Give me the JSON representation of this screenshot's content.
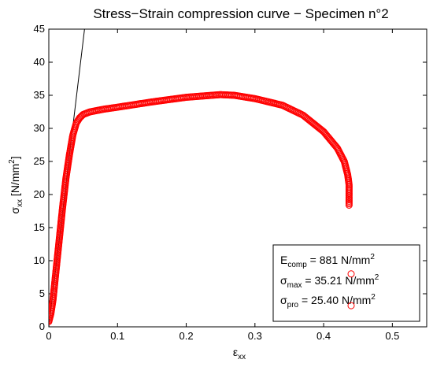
{
  "chart_data": {
    "type": "scatter",
    "title": "Stress−Strain compression curve − Specimen n°2",
    "xlabel": {
      "main": "ε",
      "sub": "xx"
    },
    "ylabel": {
      "main": "σ",
      "sub": "xx",
      "rest": " [N/mm",
      "sup": "2",
      "end": "]"
    },
    "xlim": [
      0,
      0.55
    ],
    "ylim": [
      0,
      45
    ],
    "xticks": [
      0,
      0.1,
      0.2,
      0.3,
      0.4,
      0.5
    ],
    "xtick_labels": [
      "0",
      "0.1",
      "0.2",
      "0.3",
      "0.4",
      "0.5"
    ],
    "yticks": [
      0,
      5,
      10,
      15,
      20,
      25,
      30,
      35,
      40,
      45
    ],
    "ytick_labels": [
      "0",
      "5",
      "10",
      "15",
      "20",
      "25",
      "30",
      "35",
      "40",
      "45"
    ],
    "grid": false,
    "marker_color": "#ff0000",
    "line_color": "#000000",
    "elastic_line": {
      "points": [
        [
          0,
          0
        ],
        [
          0.052,
          45
        ]
      ]
    },
    "curve_keypoints": [
      [
        0.0,
        0.8
      ],
      [
        0.003,
        2.0
      ],
      [
        0.006,
        4.0
      ],
      [
        0.01,
        8.0
      ],
      [
        0.015,
        13.0
      ],
      [
        0.02,
        18.0
      ],
      [
        0.025,
        22.5
      ],
      [
        0.03,
        26.0
      ],
      [
        0.035,
        29.0
      ],
      [
        0.04,
        30.8
      ],
      [
        0.045,
        31.6
      ],
      [
        0.05,
        32.1
      ],
      [
        0.06,
        32.5
      ],
      [
        0.08,
        32.9
      ],
      [
        0.1,
        33.2
      ],
      [
        0.15,
        34.0
      ],
      [
        0.2,
        34.7
      ],
      [
        0.25,
        35.1
      ],
      [
        0.27,
        35.0
      ],
      [
        0.3,
        34.5
      ],
      [
        0.34,
        33.5
      ],
      [
        0.37,
        32.0
      ],
      [
        0.4,
        29.5
      ],
      [
        0.42,
        27.0
      ],
      [
        0.43,
        25.0
      ],
      [
        0.435,
        23.0
      ],
      [
        0.437,
        21.5
      ],
      [
        0.437,
        20.0
      ],
      [
        0.437,
        18.4
      ]
    ],
    "isolated_points": [
      [
        0.44,
        8.0
      ],
      [
        0.44,
        3.2
      ]
    ],
    "annotation": {
      "lines": [
        {
          "main": "E",
          "sub": "comp",
          "rest": " = 881 N/mm",
          "sup": "2"
        },
        {
          "main": "σ",
          "sub": "max",
          "rest": " = 35.21 N/mm",
          "sup": "2"
        },
        {
          "main": "σ",
          "sub": "pro",
          "rest": " = 25.40 N/mm",
          "sup": "2"
        }
      ]
    }
  }
}
